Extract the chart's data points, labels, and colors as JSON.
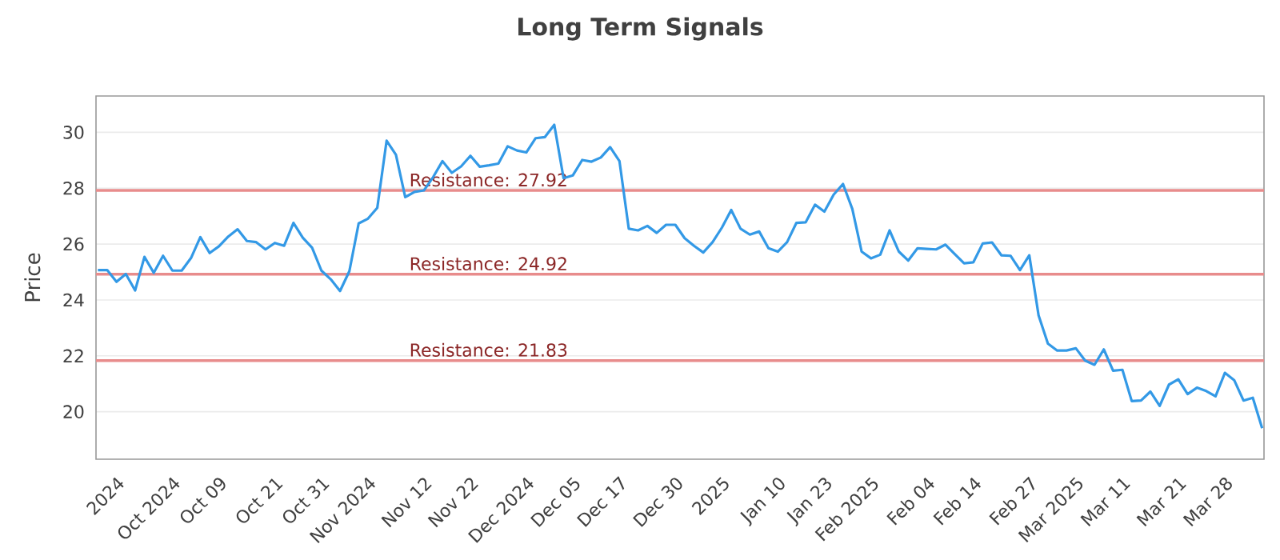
{
  "chart_data": {
    "type": "line",
    "title": "Long Term Signals",
    "ylabel": "Price",
    "categories": [
      null,
      null,
      "2024",
      null,
      null,
      null,
      null,
      null,
      "Oct 2024",
      null,
      null,
      null,
      null,
      "Oct 09",
      null,
      null,
      null,
      null,
      null,
      "Oct 21",
      null,
      null,
      null,
      null,
      "Oct 31",
      null,
      null,
      null,
      null,
      "Nov 2024",
      null,
      null,
      null,
      null,
      null,
      "Nov 12",
      null,
      null,
      null,
      null,
      "Nov 22",
      null,
      null,
      null,
      null,
      null,
      "Dec 2024",
      null,
      null,
      null,
      null,
      "Dec 05",
      null,
      null,
      null,
      null,
      "Dec 17",
      null,
      null,
      null,
      null,
      null,
      "Dec 30",
      null,
      null,
      null,
      null,
      "2025",
      null,
      null,
      null,
      null,
      null,
      "Jan 10",
      null,
      null,
      null,
      null,
      "Jan 23",
      null,
      null,
      null,
      null,
      "Feb 2025",
      null,
      null,
      null,
      null,
      null,
      "Feb 04",
      null,
      null,
      null,
      null,
      "Feb 14",
      null,
      null,
      null,
      null,
      null,
      "Feb 27",
      null,
      null,
      null,
      null,
      "Mar 2025",
      null,
      null,
      null,
      null,
      "Mar 11",
      null,
      null,
      null,
      null,
      null,
      "Mar 21",
      null,
      null,
      null,
      null,
      "Mar 28",
      null,
      null,
      null,
      null
    ],
    "series": [
      {
        "color": "#3399e6",
        "values": [
          25.07,
          25.07,
          24.65,
          24.93,
          24.34,
          25.54,
          24.97,
          25.58,
          25.05,
          25.05,
          25.5,
          26.25,
          25.68,
          25.92,
          26.27,
          26.53,
          26.11,
          26.07,
          25.81,
          26.04,
          25.94,
          26.76,
          26.23,
          25.87,
          25.05,
          24.74,
          24.32,
          25.03,
          26.74,
          26.91,
          27.3,
          29.7,
          29.2,
          27.68,
          27.87,
          27.92,
          28.4,
          28.97,
          28.55,
          28.78,
          29.16,
          28.77,
          28.82,
          28.88,
          29.5,
          29.35,
          29.28,
          29.79,
          29.83,
          30.27,
          28.36,
          28.46,
          29.01,
          28.95,
          29.1,
          29.47,
          28.97,
          26.55,
          26.49,
          26.65,
          26.4,
          26.69,
          26.69,
          26.21,
          25.94,
          25.7,
          26.07,
          26.59,
          27.22,
          26.55,
          26.34,
          26.45,
          25.85,
          25.73,
          26.07,
          26.76,
          26.78,
          27.41,
          27.16,
          27.77,
          28.15,
          27.26,
          25.73,
          25.49,
          25.62,
          26.49,
          25.73,
          25.41,
          25.85,
          25.83,
          25.81,
          25.98,
          25.64,
          25.31,
          25.35,
          26.02,
          26.06,
          25.6,
          25.58,
          25.07,
          25.6,
          23.45,
          22.44,
          22.19,
          22.19,
          22.27,
          21.83,
          21.68,
          22.23,
          21.47,
          21.5,
          20.38,
          20.4,
          20.72,
          20.21,
          20.97,
          21.16,
          20.63,
          20.86,
          20.74,
          20.55,
          21.39,
          21.13,
          20.4,
          20.5,
          19.41
        ]
      }
    ],
    "ylim": [
      18.3,
      31.3
    ],
    "yticks": [
      20,
      22,
      24,
      26,
      28,
      30
    ],
    "grid": "y",
    "marker": "none",
    "line_style": "solid",
    "ref_lines": [
      {
        "axis": "y",
        "value": 27.92,
        "label": "Resistance: 27.92",
        "color": "#e88c8c"
      },
      {
        "axis": "y",
        "value": 24.92,
        "label": "Resistance: 24.92",
        "color": "#e88c8c"
      },
      {
        "axis": "y",
        "value": 21.83,
        "label": "Resistance: 21.83",
        "color": "#e88c8c"
      }
    ]
  }
}
